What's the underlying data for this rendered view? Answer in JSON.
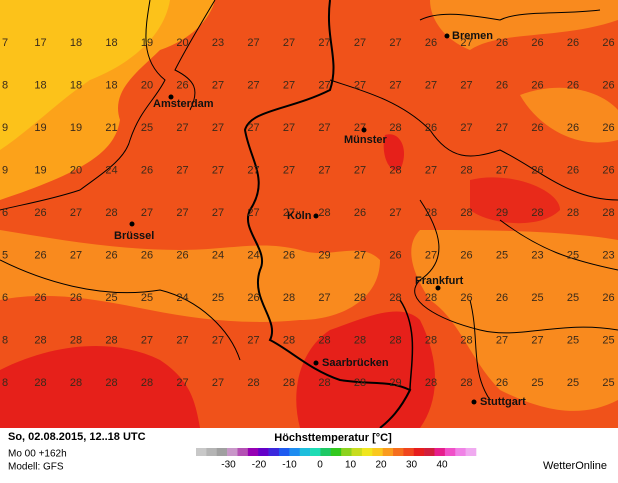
{
  "map": {
    "grid": [
      [
        7,
        17,
        18,
        18,
        19,
        20,
        23,
        27,
        27,
        27,
        27,
        27,
        26,
        27,
        26,
        26,
        26,
        26
      ],
      [
        8,
        18,
        18,
        18,
        20,
        26,
        27,
        27,
        27,
        27,
        27,
        27,
        27,
        27,
        26,
        26,
        26,
        26
      ],
      [
        9,
        19,
        19,
        21,
        25,
        27,
        27,
        27,
        27,
        27,
        27,
        28,
        26,
        27,
        27,
        26,
        26,
        26
      ],
      [
        9,
        19,
        20,
        24,
        26,
        27,
        27,
        27,
        27,
        27,
        27,
        28,
        27,
        28,
        27,
        26,
        26,
        26
      ],
      [
        6,
        26,
        27,
        28,
        27,
        27,
        27,
        27,
        27,
        28,
        26,
        27,
        28,
        28,
        29,
        28,
        28,
        28
      ],
      [
        5,
        26,
        27,
        26,
        26,
        26,
        24,
        24,
        26,
        29,
        27,
        26,
        27,
        26,
        25,
        23,
        25,
        23
      ],
      [
        6,
        26,
        26,
        25,
        25,
        24,
        25,
        26,
        28,
        27,
        28,
        28,
        28,
        26,
        26,
        25,
        25,
        26
      ],
      [
        8,
        28,
        28,
        28,
        27,
        27,
        27,
        27,
        28,
        28,
        28,
        28,
        28,
        28,
        27,
        27,
        25,
        25
      ],
      [
        8,
        28,
        28,
        28,
        28,
        27,
        27,
        28,
        28,
        28,
        28,
        29,
        28,
        28,
        26,
        25,
        25,
        25
      ]
    ],
    "cities": [
      "Bremen",
      "Amsterdam",
      "Münster",
      "Brüssel",
      "Köln",
      "Frankfurt",
      "Saarbrücken",
      "Stuttgart"
    ]
  },
  "footer": {
    "date": "So, 02.08.2015, 12..18 UTC",
    "run": "Mo 00 +162h",
    "model": "Modell: GFS",
    "title": "Höchsttemperatur [°C]",
    "scale": [
      -30,
      -20,
      -10,
      0,
      10,
      20,
      30,
      40
    ],
    "brand": "WetterOnline"
  }
}
